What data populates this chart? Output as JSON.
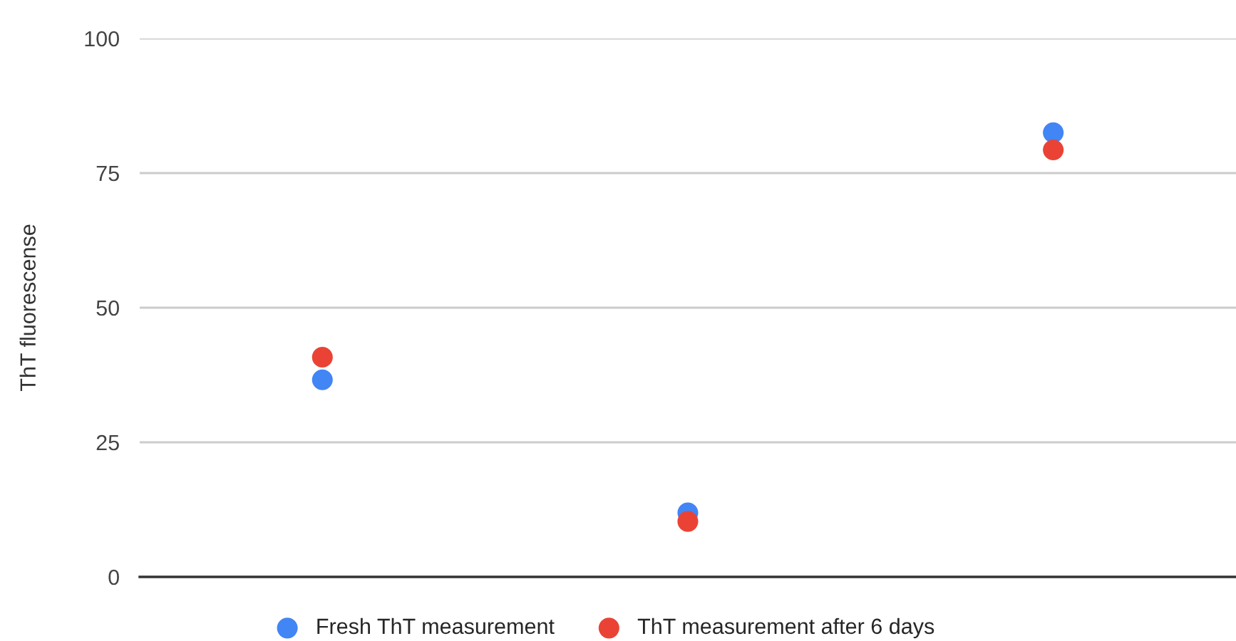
{
  "chart_data": {
    "type": "scatter",
    "ylabel": "ThT fluorescense",
    "categories": [
      null,
      null,
      null
    ],
    "series": [
      {
        "name": "Fresh ThT measurement",
        "color": "#4285f4",
        "values": [
          36.6,
          11.9,
          82.5
        ]
      },
      {
        "name": "ThT measurement after 6 days",
        "color": "#ea4335",
        "values": [
          40.8,
          10.3,
          79.3
        ]
      }
    ],
    "ylim": [
      0,
      100
    ],
    "yticks": [
      0,
      25,
      50,
      75,
      100
    ],
    "grid": "y",
    "legend": "bottom",
    "marker": "circle",
    "tick_labels": "y"
  }
}
